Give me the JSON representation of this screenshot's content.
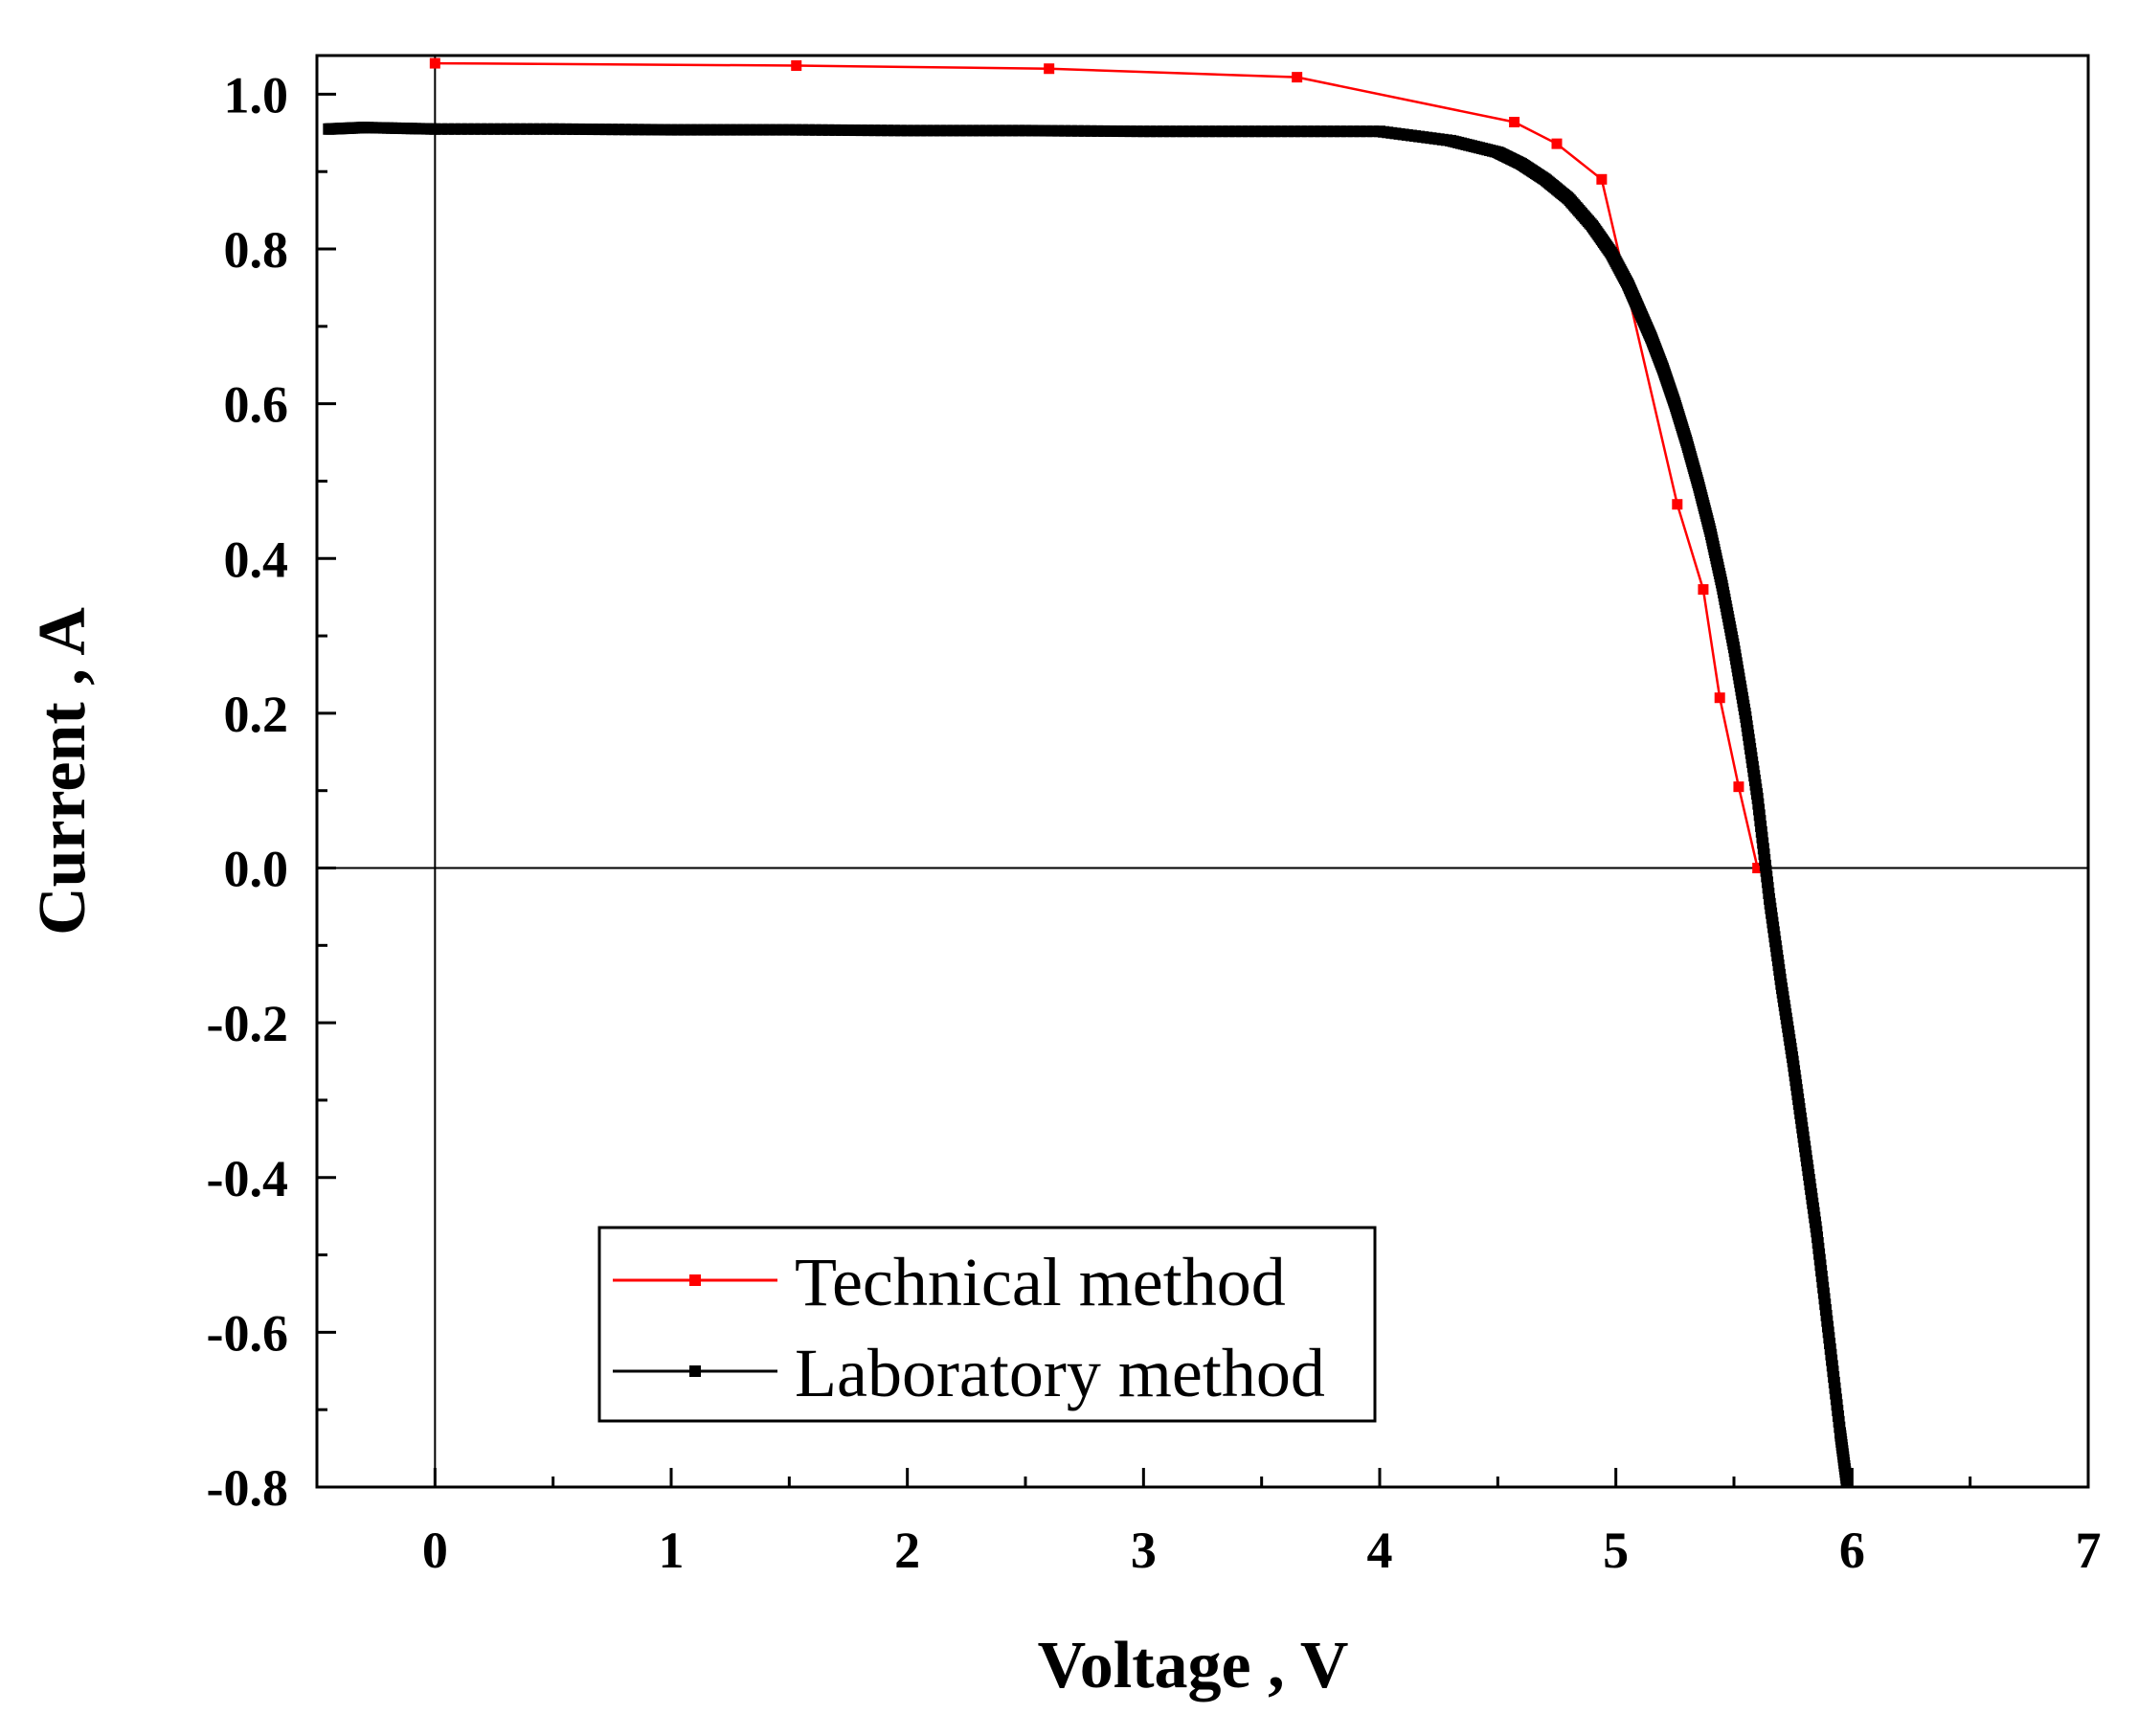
{
  "chart_data": {
    "type": "line",
    "title": "",
    "xlabel": "Voltage , V",
    "ylabel": "Current , A",
    "xlim": [
      -0.5,
      7
    ],
    "ylim": [
      -0.8,
      1.05
    ],
    "x_ticks": [
      0,
      1,
      2,
      3,
      4,
      5,
      6,
      7
    ],
    "x_tick_labels": [
      "0",
      "1",
      "2",
      "3",
      "4",
      "5",
      "6",
      "7"
    ],
    "y_ticks": [
      -0.8,
      -0.6,
      -0.4,
      -0.2,
      0.0,
      0.2,
      0.4,
      0.6,
      0.8,
      1.0
    ],
    "y_tick_labels": [
      "-0.8",
      "-0.6",
      "-0.4",
      "-0.2",
      "0.0",
      "0.2",
      "0.4",
      "0.6",
      "0.8",
      "1.0"
    ],
    "grid": false,
    "legend_position": "bottom-left",
    "reference_lines": {
      "zero_current": 0,
      "zero_voltage": 0
    },
    "series": [
      {
        "name": "Technical method",
        "color": "#ff0000",
        "marker": "square",
        "x": [
          0,
          1.53,
          2.6,
          3.65,
          4.57,
          4.75,
          4.94,
          5.26,
          5.37,
          5.44,
          5.52,
          5.6
        ],
        "y": [
          1.04,
          1.037,
          1.033,
          1.022,
          0.964,
          0.936,
          0.89,
          0.47,
          0.36,
          0.22,
          0.105,
          0.0
        ]
      },
      {
        "name": "Laboratory method",
        "color": "#000000",
        "marker": "square",
        "x": [
          -0.45,
          -0.3,
          0,
          0.5,
          1,
          1.5,
          2,
          2.5,
          3,
          3.5,
          4,
          4.3,
          4.5,
          4.6,
          4.7,
          4.8,
          4.9,
          4.98,
          5.05,
          5.1,
          5.15,
          5.2,
          5.25,
          5.3,
          5.35,
          5.4,
          5.45,
          5.5,
          5.55,
          5.6,
          5.65,
          5.7,
          5.75,
          5.8,
          5.85,
          5.9,
          5.95,
          5.98
        ],
        "y": [
          0.955,
          0.957,
          0.955,
          0.955,
          0.954,
          0.954,
          0.953,
          0.953,
          0.952,
          0.952,
          0.952,
          0.94,
          0.925,
          0.91,
          0.89,
          0.865,
          0.83,
          0.795,
          0.755,
          0.72,
          0.685,
          0.645,
          0.6,
          0.55,
          0.495,
          0.435,
          0.365,
          0.285,
          0.195,
          0.09,
          -0.04,
          -0.15,
          -0.25,
          -0.36,
          -0.47,
          -0.6,
          -0.73,
          -0.8
        ]
      }
    ]
  }
}
